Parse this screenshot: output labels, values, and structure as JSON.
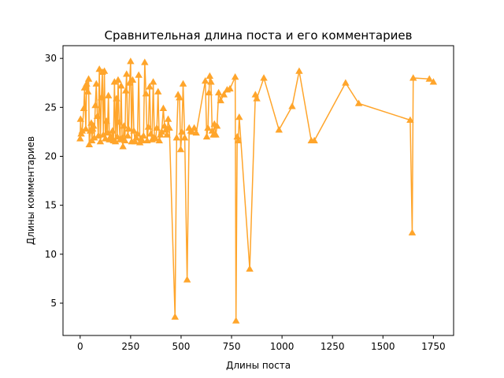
{
  "chart_data": {
    "type": "line",
    "title": "Сравнительная длина поста и его комментариев",
    "xlabel": "Длины поста",
    "ylabel": "Длины комментариев",
    "xlim": [
      -85,
      1850
    ],
    "ylim": [
      1.7,
      31.3
    ],
    "xticks": [
      0,
      250,
      500,
      750,
      1000,
      1250,
      1500,
      1750
    ],
    "yticks": [
      5,
      10,
      15,
      20,
      25,
      30
    ],
    "grid": false,
    "legend": "none",
    "marker": "triangle-up",
    "series": [
      {
        "color": "#ffa52b",
        "points": [
          [
            0,
            21.8
          ],
          [
            2,
            23.8
          ],
          [
            5,
            22.3
          ],
          [
            10,
            22.6
          ],
          [
            18,
            24.9
          ],
          [
            22,
            27.0
          ],
          [
            28,
            22.8
          ],
          [
            32,
            27.4
          ],
          [
            38,
            26.6
          ],
          [
            42,
            27.9
          ],
          [
            45,
            21.2
          ],
          [
            50,
            22.6
          ],
          [
            55,
            23.4
          ],
          [
            58,
            21.6
          ],
          [
            62,
            22.8
          ],
          [
            66,
            23.1
          ],
          [
            70,
            21.9
          ],
          [
            75,
            25.2
          ],
          [
            80,
            27.4
          ],
          [
            85,
            24.1
          ],
          [
            90,
            22.1
          ],
          [
            95,
            28.9
          ],
          [
            100,
            21.5
          ],
          [
            105,
            26.0
          ],
          [
            110,
            28.6
          ],
          [
            115,
            22.2
          ],
          [
            120,
            28.7
          ],
          [
            125,
            21.8
          ],
          [
            130,
            23.6
          ],
          [
            135,
            22.4
          ],
          [
            140,
            26.2
          ],
          [
            145,
            21.7
          ],
          [
            150,
            22.0
          ],
          [
            155,
            21.9
          ],
          [
            160,
            22.6
          ],
          [
            165,
            21.6
          ],
          [
            170,
            27.6
          ],
          [
            175,
            21.5
          ],
          [
            180,
            25.9
          ],
          [
            184,
            22.0
          ],
          [
            188,
            27.8
          ],
          [
            193,
            23.5
          ],
          [
            198,
            21.7
          ],
          [
            203,
            27.2
          ],
          [
            208,
            21.9
          ],
          [
            212,
            21.0
          ],
          [
            217,
            23.1
          ],
          [
            222,
            21.6
          ],
          [
            226,
            26.7
          ],
          [
            230,
            28.4
          ],
          [
            236,
            22.1
          ],
          [
            240,
            22.8
          ],
          [
            245,
            27.5
          ],
          [
            250,
            29.7
          ],
          [
            255,
            21.5
          ],
          [
            260,
            27.8
          ],
          [
            266,
            22.6
          ],
          [
            272,
            21.5
          ],
          [
            278,
            21.9
          ],
          [
            284,
            22.3
          ],
          [
            290,
            28.3
          ],
          [
            296,
            21.4
          ],
          [
            302,
            21.8
          ],
          [
            308,
            21.6
          ],
          [
            314,
            22.1
          ],
          [
            320,
            29.6
          ],
          [
            326,
            26.4
          ],
          [
            332,
            21.6
          ],
          [
            338,
            23.0
          ],
          [
            344,
            27.1
          ],
          [
            350,
            22.3
          ],
          [
            356,
            21.7
          ],
          [
            362,
            27.6
          ],
          [
            368,
            21.9
          ],
          [
            374,
            21.8
          ],
          [
            380,
            22.9
          ],
          [
            386,
            26.6
          ],
          [
            392,
            21.6
          ],
          [
            398,
            22.2
          ],
          [
            404,
            22.5
          ],
          [
            412,
            24.9
          ],
          [
            418,
            23.1
          ],
          [
            424,
            22.7
          ],
          [
            430,
            22.2
          ],
          [
            436,
            23.8
          ],
          [
            442,
            22.9
          ],
          [
            470,
            3.6
          ],
          [
            478,
            21.9
          ],
          [
            485,
            26.3
          ],
          [
            492,
            26.0
          ],
          [
            498,
            20.7
          ],
          [
            504,
            22.5
          ],
          [
            510,
            27.4
          ],
          [
            518,
            21.9
          ],
          [
            530,
            7.4
          ],
          [
            540,
            22.9
          ],
          [
            548,
            22.6
          ],
          [
            555,
            22.5
          ],
          [
            565,
            22.9
          ],
          [
            575,
            22.4
          ],
          [
            620,
            27.7
          ],
          [
            627,
            22.0
          ],
          [
            633,
            22.9
          ],
          [
            638,
            26.5
          ],
          [
            642,
            28.2
          ],
          [
            648,
            27.6
          ],
          [
            654,
            22.6
          ],
          [
            660,
            22.2
          ],
          [
            665,
            23.3
          ],
          [
            672,
            22.2
          ],
          [
            678,
            23.1
          ],
          [
            686,
            26.5
          ],
          [
            696,
            25.7
          ],
          [
            712,
            26.3
          ],
          [
            728,
            26.8
          ],
          [
            742,
            26.9
          ],
          [
            768,
            28.1
          ],
          [
            772,
            3.2
          ],
          [
            778,
            22.0
          ],
          [
            783,
            21.6
          ],
          [
            788,
            24.0
          ],
          [
            840,
            8.5
          ],
          [
            868,
            26.3
          ],
          [
            875,
            25.9
          ],
          [
            910,
            28.0
          ],
          [
            985,
            22.7
          ],
          [
            1050,
            25.1
          ],
          [
            1085,
            28.7
          ],
          [
            1145,
            21.6
          ],
          [
            1160,
            21.6
          ],
          [
            1315,
            27.5
          ],
          [
            1380,
            25.4
          ],
          [
            1635,
            23.7
          ],
          [
            1645,
            12.2
          ],
          [
            1650,
            28.0
          ],
          [
            1730,
            27.9
          ],
          [
            1750,
            27.6
          ]
        ]
      }
    ]
  }
}
